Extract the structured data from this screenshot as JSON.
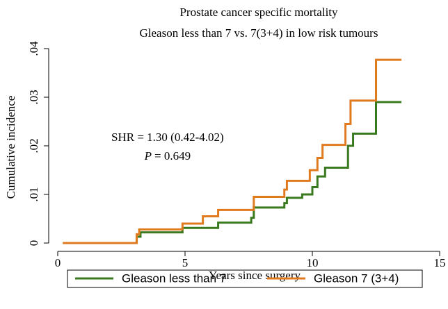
{
  "chart_data": {
    "type": "line",
    "step": "post",
    "title": "Prostate cancer specific mortality",
    "subtitle": "Gleason less than 7 vs. 7(3+4) in low risk tumours",
    "x_label": "Years since surgery",
    "y_label": "Cumulative incidence",
    "annotation": {
      "line1": "SHR = 1.30 (0.42-4.02)",
      "p_symbol": "P",
      "p_value": "= 0.649"
    },
    "xlim": [
      0,
      15
    ],
    "xticks": [
      0,
      5,
      10,
      15
    ],
    "ylim": [
      0,
      0.04
    ],
    "yticks": [
      0,
      {
        "value": 0.01,
        "label": ".01"
      },
      {
        "value": 0.02,
        "label": ".02"
      },
      {
        "value": 0.03,
        "label": ".03"
      },
      {
        "value": 0.04,
        "label": ".04"
      }
    ],
    "legend": "bottom",
    "series": [
      {
        "name": "Gleason less than 7",
        "color": "#3a7a1e",
        "x": [
          0.2,
          3.1,
          3.25,
          4.9,
          6.3,
          7.6,
          7.7,
          8.9,
          9.0,
          9.6,
          10.0,
          10.2,
          10.5,
          11.4,
          11.6,
          12.5,
          13.5
        ],
        "values": [
          0,
          0.0013,
          0.0022,
          0.0031,
          0.0042,
          0.0052,
          0.0073,
          0.0082,
          0.0093,
          0.01,
          0.0115,
          0.0137,
          0.0155,
          0.02,
          0.0225,
          0.029,
          0.029
        ]
      },
      {
        "name": "Gleason 7 (3+4)",
        "color": "#e07a1f",
        "x": [
          0.2,
          3.1,
          3.2,
          4.9,
          5.7,
          6.3,
          7.7,
          8.9,
          9.0,
          9.9,
          10.2,
          10.4,
          11.3,
          11.5,
          12.5,
          13.5
        ],
        "values": [
          0,
          0.0018,
          0.0028,
          0.004,
          0.0055,
          0.0068,
          0.0095,
          0.011,
          0.0128,
          0.015,
          0.0175,
          0.0202,
          0.0245,
          0.0293,
          0.0377,
          0.0377
        ]
      }
    ]
  }
}
